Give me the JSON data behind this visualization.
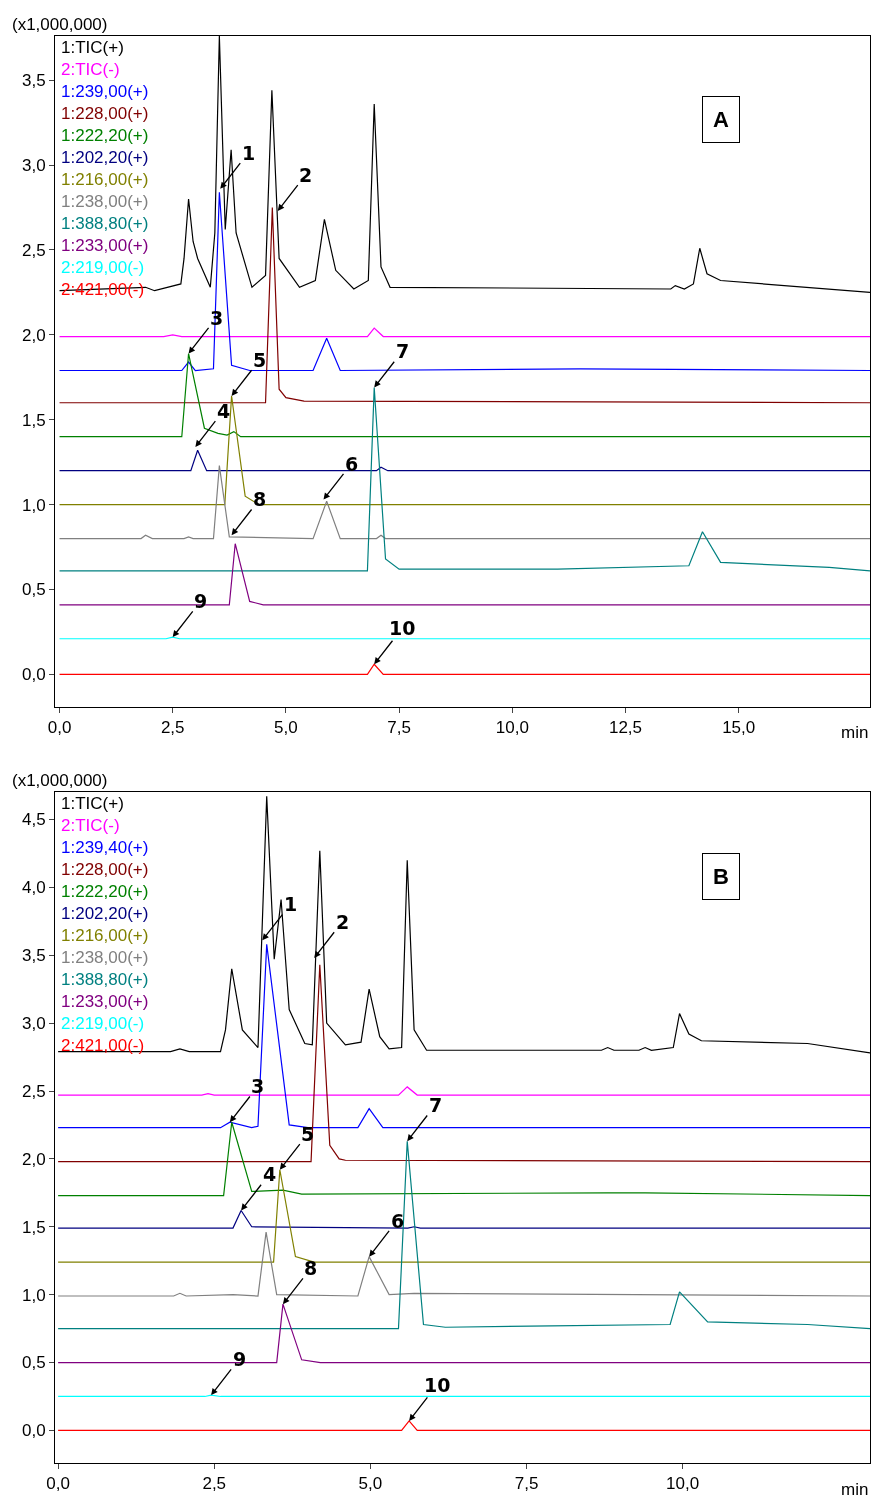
{
  "chart_data": [
    {
      "type": "line",
      "xlabel": "min",
      "ylabel": "(x1,000,000)",
      "legend": "top left",
      "line_style": "solid",
      "xlim": [
        -0.1,
        17.9
      ],
      "ylim": [
        -0.19,
        3.76
      ],
      "xticks": [
        {
          "value": 0,
          "label": "0,0"
        },
        {
          "value": 2.5,
          "label": "2,5"
        },
        {
          "value": 5,
          "label": "5,0"
        },
        {
          "value": 7.5,
          "label": "7,5"
        },
        {
          "value": 10,
          "label": "10,0"
        },
        {
          "value": 12.5,
          "label": "12,5"
        },
        {
          "value": 15,
          "label": "15,0"
        }
      ],
      "yticks": [
        {
          "value": 0,
          "label": "0,0"
        },
        {
          "value": 0.5,
          "label": "0,5"
        },
        {
          "value": 1,
          "label": "1,0"
        },
        {
          "value": 1.5,
          "label": "1,5"
        },
        {
          "value": 2,
          "label": "2,0"
        },
        {
          "value": 2.5,
          "label": "2,5"
        },
        {
          "value": 3,
          "label": "3,0"
        },
        {
          "value": 3.5,
          "label": "3,5"
        }
      ],
      "series": [
        {
          "name": "1:TIC(+)",
          "color": "#000000",
          "x": [
            0,
            1.9,
            2.1,
            2.68,
            2.75,
            2.85,
            2.95,
            3.05,
            3.33,
            3.43,
            3.53,
            3.66,
            3.79,
            3.9,
            4.25,
            4.55,
            4.69,
            4.85,
            5.3,
            5.65,
            5.85,
            6.1,
            6.5,
            6.82,
            6.95,
            7.1,
            7.3,
            13.5,
            13.6,
            13.8,
            14.0,
            14.14,
            14.3,
            14.6,
            17.9
          ],
          "values": [
            2.26,
            2.28,
            2.26,
            2.3,
            2.45,
            2.8,
            2.55,
            2.45,
            2.28,
            2.6,
            3.76,
            2.62,
            3.09,
            2.6,
            2.28,
            2.35,
            3.44,
            2.45,
            2.28,
            2.32,
            2.68,
            2.38,
            2.27,
            2.32,
            3.36,
            2.4,
            2.28,
            2.27,
            2.29,
            2.27,
            2.3,
            2.51,
            2.36,
            2.32,
            2.25
          ]
        },
        {
          "name": "2:TIC(-)",
          "color": "#ff00ff",
          "x": [
            0,
            2.3,
            2.5,
            2.7,
            6.8,
            6.95,
            7.15,
            17.9
          ],
          "values": [
            1.99,
            1.99,
            2.0,
            1.99,
            1.99,
            2.04,
            1.99,
            1.99
          ]
        },
        {
          "name": "1:239,00(+)",
          "color": "#0000ff",
          "x": [
            0,
            2.7,
            2.85,
            3.0,
            3.4,
            3.53,
            3.8,
            4.2,
            5.6,
            5.9,
            6.2,
            11.5,
            17.9
          ],
          "values": [
            1.79,
            1.79,
            1.84,
            1.79,
            1.8,
            2.84,
            1.82,
            1.79,
            1.79,
            1.98,
            1.79,
            1.8,
            1.79
          ]
        },
        {
          "name": "1:228,00(+)",
          "color": "#800000",
          "x": [
            0,
            4.55,
            4.7,
            4.85,
            5.0,
            5.4,
            17.9
          ],
          "values": [
            1.6,
            1.6,
            2.75,
            1.68,
            1.63,
            1.61,
            1.6
          ]
        },
        {
          "name": "1:222,20(+)",
          "color": "#008000",
          "x": [
            0,
            2.7,
            2.85,
            3.2,
            3.5,
            3.7,
            3.85,
            4.0,
            17.9
          ],
          "values": [
            1.4,
            1.4,
            1.89,
            1.45,
            1.42,
            1.41,
            1.43,
            1.4,
            1.4
          ]
        },
        {
          "name": "1:202,20(+)",
          "color": "#000080",
          "x": [
            0,
            2.9,
            3.05,
            3.25,
            7.0,
            7.1,
            7.25,
            17.9
          ],
          "values": [
            1.2,
            1.2,
            1.32,
            1.2,
            1.2,
            1.22,
            1.2,
            1.2
          ]
        },
        {
          "name": "1:216,00(+)",
          "color": "#808000",
          "x": [
            0,
            3.65,
            3.8,
            4.1,
            4.4,
            17.9
          ],
          "values": [
            1.0,
            1.0,
            1.64,
            1.05,
            1.0,
            1.0
          ]
        },
        {
          "name": "1:238,00(+)",
          "color": "#808080",
          "x": [
            0,
            1.8,
            1.9,
            2.05,
            2.75,
            2.85,
            2.95,
            3.4,
            3.53,
            3.75,
            5.6,
            5.9,
            6.2,
            7.0,
            7.1,
            7.2,
            17.9
          ],
          "values": [
            0.8,
            0.8,
            0.82,
            0.8,
            0.8,
            0.81,
            0.8,
            0.8,
            1.23,
            0.81,
            0.8,
            1.02,
            0.8,
            0.8,
            0.82,
            0.8,
            0.8
          ]
        },
        {
          "name": "1:388,80(+)",
          "color": "#008080",
          "x": [
            0,
            6.8,
            6.95,
            7.2,
            7.5,
            11,
            13.9,
            14.2,
            14.6,
            17,
            17.9
          ],
          "values": [
            0.61,
            0.61,
            1.69,
            0.68,
            0.62,
            0.62,
            0.64,
            0.84,
            0.66,
            0.63,
            0.61
          ]
        },
        {
          "name": "1:233,00(+)",
          "color": "#800080",
          "x": [
            0,
            3.75,
            3.88,
            4.2,
            4.5,
            17.9
          ],
          "values": [
            0.41,
            0.41,
            0.77,
            0.43,
            0.41,
            0.41
          ]
        },
        {
          "name": "2:219,00(-)",
          "color": "#00ffff",
          "x": [
            0,
            2.35,
            2.5,
            2.65,
            17.9
          ],
          "values": [
            0.21,
            0.21,
            0.22,
            0.21,
            0.21
          ]
        },
        {
          "name": "2:421,00(-)",
          "color": "#ff0000",
          "x": [
            0,
            6.8,
            6.95,
            7.15,
            17.9
          ],
          "values": [
            0,
            0,
            0.06,
            0,
            0
          ]
        }
      ],
      "annotations": [
        "A",
        {
          "text": "1",
          "x": 3.55,
          "y": 2.86
        },
        {
          "text": "2",
          "x": 4.82,
          "y": 2.73
        },
        {
          "text": "3",
          "x": 2.85,
          "y": 1.89
        },
        {
          "text": "4",
          "x": 3.0,
          "y": 1.34
        },
        {
          "text": "5",
          "x": 3.8,
          "y": 1.64
        },
        {
          "text": "6",
          "x": 5.83,
          "y": 1.03
        },
        {
          "text": "7",
          "x": 6.95,
          "y": 1.69
        },
        {
          "text": "8",
          "x": 3.8,
          "y": 0.82
        },
        {
          "text": "9",
          "x": 2.5,
          "y": 0.22
        },
        {
          "text": "10",
          "x": 6.95,
          "y": 0.06
        }
      ]
    },
    {
      "type": "line",
      "xlabel": "min",
      "ylabel": "(x1,000,000)",
      "legend": "top left",
      "line_style": "solid",
      "xlim": [
        -0.05,
        13.0
      ],
      "ylim": [
        -0.24,
        4.7
      ],
      "xticks": [
        {
          "value": 0,
          "label": "0,0"
        },
        {
          "value": 2.5,
          "label": "2,5"
        },
        {
          "value": 5,
          "label": "5,0"
        },
        {
          "value": 7.5,
          "label": "7,5"
        },
        {
          "value": 10,
          "label": "10,0"
        }
      ],
      "yticks": [
        {
          "value": 0,
          "label": "0,0"
        },
        {
          "value": 0.5,
          "label": "0,5"
        },
        {
          "value": 1,
          "label": "1,0"
        },
        {
          "value": 1.5,
          "label": "1,5"
        },
        {
          "value": 2,
          "label": "2,0"
        },
        {
          "value": 2.5,
          "label": "2,5"
        },
        {
          "value": 3,
          "label": "3,0"
        },
        {
          "value": 3.5,
          "label": "3,5"
        },
        {
          "value": 4,
          "label": "4,0"
        },
        {
          "value": 4.5,
          "label": "4,5"
        }
      ],
      "series": [
        {
          "name": "1:TIC(+)",
          "color": "#000000",
          "x": [
            0,
            1.8,
            1.95,
            2.1,
            2.6,
            2.68,
            2.78,
            2.95,
            3.2,
            3.34,
            3.46,
            3.57,
            3.7,
            3.95,
            4.07,
            4.19,
            4.3,
            4.6,
            4.85,
            4.98,
            5.15,
            5.3,
            5.5,
            5.59,
            5.7,
            5.9,
            8.7,
            8.8,
            8.9,
            9.3,
            9.4,
            9.5,
            9.85,
            9.95,
            10.1,
            10.3,
            12,
            13
          ],
          "values": [
            2.79,
            2.79,
            2.81,
            2.79,
            2.79,
            2.95,
            3.4,
            2.95,
            2.82,
            4.67,
            3.47,
            3.91,
            3.1,
            2.85,
            2.84,
            4.27,
            3.0,
            2.84,
            2.86,
            3.25,
            2.9,
            2.81,
            2.82,
            4.2,
            2.95,
            2.8,
            2.8,
            2.82,
            2.8,
            2.8,
            2.82,
            2.8,
            2.82,
            3.07,
            2.92,
            2.87,
            2.85,
            2.78
          ]
        },
        {
          "name": "2:TIC(-)",
          "color": "#ff00ff",
          "x": [
            0,
            2.3,
            2.4,
            2.5,
            5.45,
            5.59,
            5.75,
            13
          ],
          "values": [
            2.47,
            2.47,
            2.48,
            2.47,
            2.47,
            2.53,
            2.47,
            2.47
          ]
        },
        {
          "name": "1:239,40(+)",
          "color": "#0000ff",
          "x": [
            0,
            2.6,
            2.75,
            3.1,
            3.2,
            3.34,
            3.7,
            4.0,
            4.8,
            4.98,
            5.2,
            13
          ],
          "values": [
            2.23,
            2.23,
            2.27,
            2.23,
            2.24,
            3.58,
            2.25,
            2.23,
            2.23,
            2.37,
            2.23,
            2.23
          ]
        },
        {
          "name": "1:228,00(+)",
          "color": "#800000",
          "x": [
            0,
            4.05,
            4.19,
            4.35,
            4.5,
            4.6,
            13
          ],
          "values": [
            1.98,
            1.98,
            3.43,
            2.1,
            2.0,
            1.99,
            1.98
          ]
        },
        {
          "name": "1:222,20(+)",
          "color": "#008000",
          "x": [
            0,
            2.65,
            2.78,
            3.1,
            3.6,
            3.9,
            8.8,
            9.4,
            13
          ],
          "values": [
            1.73,
            1.73,
            2.27,
            1.76,
            1.77,
            1.74,
            1.75,
            1.75,
            1.73
          ]
        },
        {
          "name": "1:202,20(+)",
          "color": "#000080",
          "x": [
            0,
            2.8,
            2.93,
            3.1,
            5.6,
            5.7,
            5.8,
            13
          ],
          "values": [
            1.49,
            1.49,
            1.62,
            1.5,
            1.49,
            1.5,
            1.49,
            1.49
          ]
        },
        {
          "name": "1:216,00(+)",
          "color": "#808000",
          "x": [
            0,
            3.45,
            3.55,
            3.8,
            4.1,
            13
          ],
          "values": [
            1.24,
            1.24,
            1.92,
            1.28,
            1.24,
            1.24
          ]
        },
        {
          "name": "1:238,00(+)",
          "color": "#808080",
          "x": [
            0,
            1.85,
            1.95,
            2.05,
            2.8,
            3.2,
            3.33,
            3.5,
            4.8,
            4.98,
            5.3,
            5.7,
            13
          ],
          "values": [
            0.99,
            0.99,
            1.01,
            0.99,
            1.0,
            0.99,
            1.46,
            1.0,
            0.99,
            1.28,
            1.0,
            1.01,
            0.99
          ]
        },
        {
          "name": "1:388,80(+)",
          "color": "#008080",
          "x": [
            0,
            5.45,
            5.59,
            5.85,
            6.2,
            7.9,
            9.8,
            9.95,
            10.4,
            12,
            13
          ],
          "values": [
            0.75,
            0.75,
            2.13,
            0.78,
            0.76,
            0.77,
            0.78,
            1.02,
            0.8,
            0.78,
            0.75
          ]
        },
        {
          "name": "1:233,00(+)",
          "color": "#800080",
          "x": [
            0,
            3.5,
            3.6,
            3.9,
            4.2,
            13
          ],
          "values": [
            0.5,
            0.5,
            0.93,
            0.52,
            0.5,
            0.5
          ]
        },
        {
          "name": "2:219,00(-)",
          "color": "#00ffff",
          "x": [
            0,
            2.35,
            2.45,
            2.6,
            13
          ],
          "values": [
            0.25,
            0.25,
            0.26,
            0.25,
            0.25
          ]
        },
        {
          "name": "2:421,00(-)",
          "color": "#ff0000",
          "x": [
            0,
            5.5,
            5.62,
            5.75,
            13
          ],
          "values": [
            0,
            0,
            0.07,
            0,
            0
          ]
        }
      ],
      "annotations": [
        "B",
        {
          "text": "1",
          "x": 3.27,
          "y": 3.61
        },
        {
          "text": "2",
          "x": 4.1,
          "y": 3.48
        },
        {
          "text": "3",
          "x": 2.75,
          "y": 2.27
        },
        {
          "text": "4",
          "x": 2.93,
          "y": 1.62
        },
        {
          "text": "5",
          "x": 3.55,
          "y": 1.92
        },
        {
          "text": "6",
          "x": 4.98,
          "y": 1.28
        },
        {
          "text": "7",
          "x": 5.59,
          "y": 2.13
        },
        {
          "text": "8",
          "x": 3.6,
          "y": 0.93
        },
        {
          "text": "9",
          "x": 2.45,
          "y": 0.26
        },
        {
          "text": "10",
          "x": 5.62,
          "y": 0.07
        }
      ]
    }
  ]
}
